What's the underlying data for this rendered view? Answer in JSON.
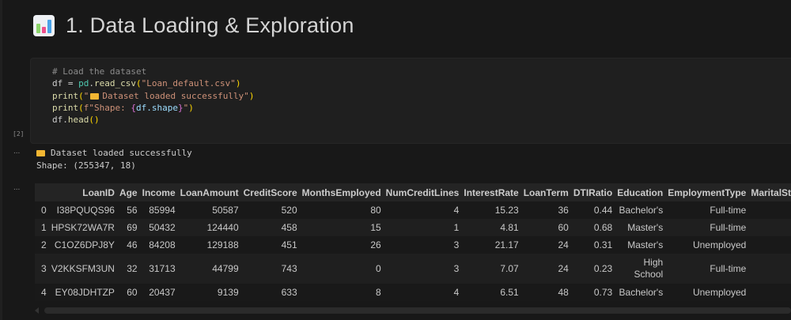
{
  "heading": {
    "icon": "bar-chart-icon",
    "text": "1. Data Loading & Exploration"
  },
  "code_cell": {
    "execution_count": "[2]",
    "lines": {
      "l1": "# Load the dataset",
      "l2a": "df = ",
      "l2b": "pd",
      ".": ".",
      "l2c": "read_csv",
      "l2d": "(",
      "l2e": "\"Loan_default.csv\"",
      "l2f": ")",
      "l3a": "print",
      "l3b": "(",
      "l3c": "\"",
      "l3d": "Dataset loaded successfully\"",
      "l3e": ")",
      "l4a": "print",
      "l4b": "(",
      "l4c": "f\"Shape: ",
      "l4d": "{",
      "l4e": "df.shape",
      "l4f": "}",
      "l4g": "\"",
      "l4h": ")",
      "l5a": "df.",
      "l5b": "head",
      "l5c": "()"
    }
  },
  "output": {
    "more": "...",
    "line1": "Dataset loaded successfully",
    "line2": "Shape: (255347, 18)",
    "folder_icon": "folder-icon"
  },
  "table": {
    "more": "...",
    "columns": [
      "",
      "LoanID",
      "Age",
      "Income",
      "LoanAmount",
      "CreditScore",
      "MonthsEmployed",
      "NumCreditLines",
      "InterestRate",
      "LoanTerm",
      "DTIRatio",
      "Education",
      "EmploymentType",
      "MaritalStatus"
    ],
    "rows": [
      [
        "0",
        "I38PQUQS96",
        "56",
        "85994",
        "50587",
        "520",
        "80",
        "4",
        "15.23",
        "36",
        "0.44",
        "Bachelor's",
        "Full-time",
        ""
      ],
      [
        "1",
        "HPSK72WA7R",
        "69",
        "50432",
        "124440",
        "458",
        "15",
        "1",
        "4.81",
        "60",
        "0.68",
        "Master's",
        "Full-time",
        ""
      ],
      [
        "2",
        "C1OZ6DPJ8Y",
        "46",
        "84208",
        "129188",
        "451",
        "26",
        "3",
        "21.17",
        "24",
        "0.31",
        "Master's",
        "Unemployed",
        ""
      ],
      [
        "3",
        "V2KKSFM3UN",
        "32",
        "31713",
        "44799",
        "743",
        "0",
        "3",
        "7.07",
        "24",
        "0.23",
        "High School",
        "Full-time",
        ""
      ],
      [
        "4",
        "EY08JDHTZP",
        "60",
        "20437",
        "9139",
        "633",
        "8",
        "4",
        "6.51",
        "48",
        "0.73",
        "Bachelor's",
        "Unemployed",
        ""
      ]
    ]
  }
}
